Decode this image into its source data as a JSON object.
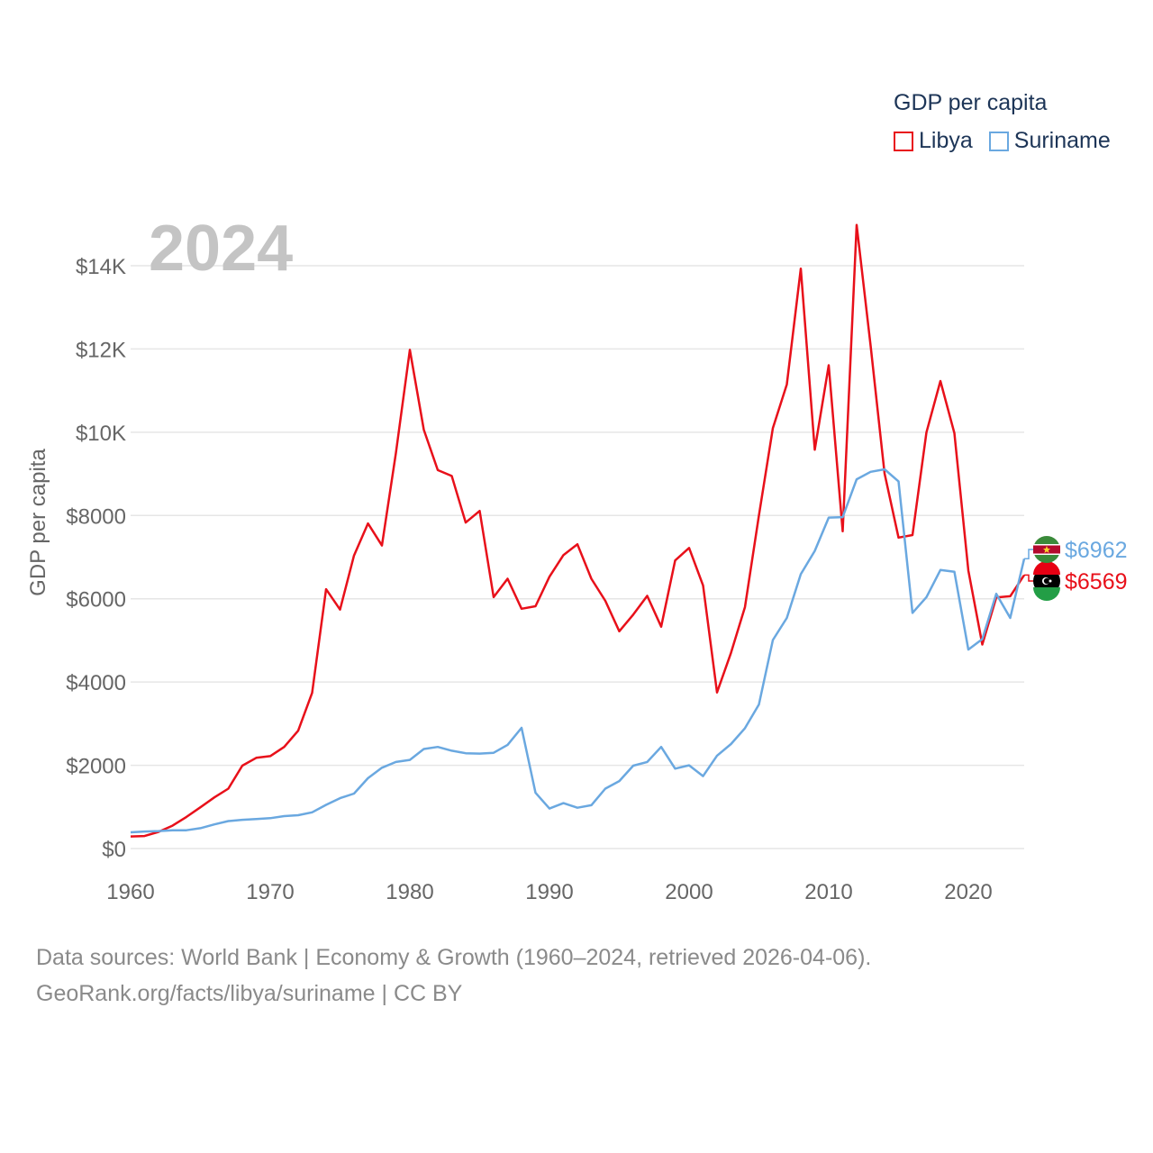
{
  "chart_data": {
    "type": "line",
    "year_label": "2024",
    "ylabel": "GDP per capita",
    "xlabel": "",
    "xlim": [
      1960,
      2024
    ],
    "ylim": [
      0,
      15000
    ],
    "x_ticks": [
      1960,
      1970,
      1980,
      1990,
      2000,
      2010,
      2020
    ],
    "x_tick_labels": [
      "1960",
      "1970",
      "1980",
      "1990",
      "2000",
      "2010",
      "2020"
    ],
    "y_ticks": [
      0,
      2000,
      4000,
      6000,
      8000,
      10000,
      12000,
      14000
    ],
    "y_tick_labels": [
      "$0",
      "$2000",
      "$4000",
      "$6000",
      "$8000",
      "$10K",
      "$12K",
      "$14K"
    ],
    "legend_title": "GDP per capita",
    "grid": true,
    "series": [
      {
        "name": "Libya",
        "color": "#e8101a",
        "end_label": "$6569",
        "x": [
          1960,
          1961,
          1962,
          1963,
          1964,
          1965,
          1966,
          1967,
          1968,
          1969,
          1970,
          1971,
          1972,
          1973,
          1974,
          1975,
          1976,
          1977,
          1978,
          1979,
          1980,
          1981,
          1982,
          1983,
          1984,
          1985,
          1986,
          1987,
          1988,
          1989,
          1990,
          1991,
          1992,
          1993,
          1994,
          1995,
          1996,
          1997,
          1998,
          1999,
          2000,
          2001,
          2002,
          2003,
          2004,
          2005,
          2006,
          2007,
          2008,
          2009,
          2010,
          2011,
          2012,
          2013,
          2014,
          2015,
          2016,
          2017,
          2018,
          2019,
          2020,
          2021,
          2022,
          2023,
          2024
        ],
        "values": [
          290,
          300,
          400,
          550,
          760,
          990,
          1230,
          1440,
          1990,
          2180,
          2220,
          2440,
          2830,
          3740,
          6230,
          5740,
          7040,
          7810,
          7280,
          9500,
          11980,
          10060,
          9090,
          8950,
          7830,
          8110,
          6040,
          6480,
          5760,
          5820,
          6530,
          7050,
          7310,
          6480,
          5950,
          5220,
          5620,
          6070,
          5330,
          6920,
          7220,
          6320,
          3750,
          4700,
          5800,
          8000,
          10100,
          11150,
          13930,
          9580,
          11610,
          7620,
          14980,
          12080,
          9010,
          7470,
          7530,
          10000,
          11230,
          9980,
          6680,
          4900,
          6030,
          6060,
          6569
        ]
      },
      {
        "name": "Suriname",
        "color": "#6aa8e0",
        "end_label": "$6962",
        "x": [
          1960,
          1961,
          1962,
          1963,
          1964,
          1965,
          1966,
          1967,
          1968,
          1969,
          1970,
          1971,
          1972,
          1973,
          1974,
          1975,
          1976,
          1977,
          1978,
          1979,
          1980,
          1981,
          1982,
          1983,
          1984,
          1985,
          1986,
          1987,
          1988,
          1989,
          1990,
          1991,
          1992,
          1993,
          1994,
          1995,
          1996,
          1997,
          1998,
          1999,
          2000,
          2001,
          2002,
          2003,
          2004,
          2005,
          2006,
          2007,
          2008,
          2009,
          2010,
          2011,
          2012,
          2013,
          2014,
          2015,
          2016,
          2017,
          2018,
          2019,
          2020,
          2021,
          2022,
          2023,
          2024
        ],
        "values": [
          390,
          410,
          420,
          440,
          440,
          490,
          580,
          660,
          690,
          710,
          730,
          780,
          800,
          870,
          1050,
          1210,
          1320,
          1690,
          1940,
          2080,
          2130,
          2390,
          2440,
          2350,
          2290,
          2280,
          2300,
          2490,
          2900,
          1340,
          960,
          1090,
          980,
          1040,
          1440,
          1620,
          1990,
          2080,
          2440,
          1920,
          2000,
          1740,
          2230,
          2510,
          2890,
          3460,
          5010,
          5540,
          6590,
          7150,
          7950,
          7960,
          8870,
          9050,
          9110,
          8820,
          5660,
          6040,
          6690,
          6650,
          4780,
          5030,
          6120,
          5540,
          6962
        ]
      }
    ]
  },
  "source": {
    "line1": "Data sources: World Bank | Economy & Growth (1960–2024, retrieved 2026-04-06).",
    "line2": "GeoRank.org/facts/libya/suriname | CC BY"
  }
}
